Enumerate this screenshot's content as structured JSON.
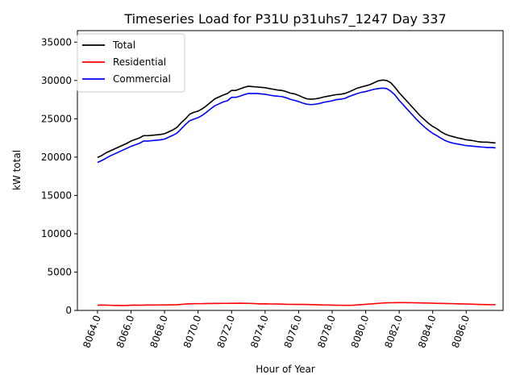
{
  "chart_data": {
    "type": "line",
    "title": "Timeseries Load for P31U p31uhs7_1247  Day 337",
    "xlabel": "Hour of Year",
    "ylabel": "kW total",
    "xlim": [
      8062.8,
      8088.2
    ],
    "ylim": [
      0,
      36500
    ],
    "x_ticks": [
      8064,
      8066,
      8068,
      8070,
      8072,
      8074,
      8076,
      8078,
      8080,
      8082,
      8084,
      8086
    ],
    "x_tick_labels": [
      "8064.0",
      "8066.0",
      "8068.0",
      "8070.0",
      "8072.0",
      "8074.0",
      "8076.0",
      "8078.0",
      "8080.0",
      "8082.0",
      "8084.0",
      "8086.0"
    ],
    "y_ticks": [
      0,
      5000,
      10000,
      15000,
      20000,
      25000,
      30000,
      35000
    ],
    "y_tick_labels": [
      "0",
      "5000",
      "10000",
      "15000",
      "20000",
      "25000",
      "30000",
      "35000"
    ],
    "legend_position": "top-left",
    "x": [
      8064.0,
      8064.25,
      8064.5,
      8064.75,
      8065.0,
      8065.25,
      8065.5,
      8065.75,
      8066.0,
      8066.25,
      8066.5,
      8066.75,
      8067.0,
      8067.25,
      8067.5,
      8067.75,
      8068.0,
      8068.25,
      8068.5,
      8068.75,
      8069.0,
      8069.25,
      8069.5,
      8069.75,
      8070.0,
      8070.25,
      8070.5,
      8070.75,
      8071.0,
      8071.25,
      8071.5,
      8071.75,
      8072.0,
      8072.25,
      8072.5,
      8072.75,
      8073.0,
      8073.25,
      8073.5,
      8073.75,
      8074.0,
      8074.25,
      8074.5,
      8074.75,
      8075.0,
      8075.25,
      8075.5,
      8075.75,
      8076.0,
      8076.25,
      8076.5,
      8076.75,
      8077.0,
      8077.25,
      8077.5,
      8077.75,
      8078.0,
      8078.25,
      8078.5,
      8078.75,
      8079.0,
      8079.25,
      8079.5,
      8079.75,
      8080.0,
      8080.25,
      8080.5,
      8080.75,
      8081.0,
      8081.25,
      8081.5,
      8081.75,
      8082.0,
      8082.25,
      8082.5,
      8082.75,
      8083.0,
      8083.25,
      8083.5,
      8083.75,
      8084.0,
      8084.25,
      8084.5,
      8084.75,
      8085.0,
      8085.25,
      8085.5,
      8085.75,
      8086.0,
      8086.25,
      8086.5,
      8086.75,
      8087.0,
      8087.25,
      8087.5,
      8087.75
    ],
    "series": [
      {
        "name": "Total",
        "color": "#000000",
        "values": [
          19950,
          20200,
          20550,
          20800,
          21050,
          21300,
          21550,
          21800,
          22100,
          22300,
          22500,
          22800,
          22800,
          22850,
          22900,
          22950,
          23050,
          23300,
          23550,
          23900,
          24500,
          25000,
          25600,
          25850,
          26000,
          26300,
          26700,
          27150,
          27600,
          27850,
          28100,
          28300,
          28700,
          28700,
          28900,
          29100,
          29250,
          29200,
          29150,
          29100,
          29050,
          28950,
          28850,
          28750,
          28700,
          28550,
          28350,
          28250,
          28050,
          27800,
          27600,
          27550,
          27600,
          27700,
          27850,
          27950,
          28050,
          28150,
          28200,
          28300,
          28500,
          28750,
          29000,
          29150,
          29300,
          29450,
          29700,
          29950,
          30050,
          30000,
          29700,
          29100,
          28400,
          27800,
          27200,
          26600,
          26000,
          25400,
          24900,
          24400,
          24000,
          23700,
          23300,
          23000,
          22800,
          22650,
          22500,
          22400,
          22250,
          22200,
          22100,
          22000,
          21950,
          21950,
          21900,
          21850
        ]
      },
      {
        "name": "Residential",
        "color": "#ff0000",
        "values": [
          680,
          690,
          690,
          670,
          650,
          650,
          640,
          650,
          680,
          690,
          680,
          690,
          700,
          710,
          700,
          710,
          720,
          720,
          730,
          740,
          780,
          830,
          860,
          870,
          880,
          880,
          900,
          900,
          910,
          910,
          920,
          920,
          930,
          930,
          940,
          930,
          920,
          900,
          870,
          850,
          860,
          840,
          840,
          830,
          820,
          800,
          790,
          780,
          790,
          780,
          770,
          760,
          740,
          720,
          710,
          700,
          690,
          680,
          670,
          660,
          660,
          680,
          720,
          760,
          800,
          840,
          870,
          920,
          960,
          990,
          1000,
          1010,
          1020,
          1020,
          1010,
          1000,
          990,
          980,
          970,
          960,
          940,
          920,
          910,
          900,
          890,
          880,
          860,
          850,
          840,
          820,
          800,
          780,
          770,
          760,
          750,
          740
        ]
      },
      {
        "name": "Commercial",
        "color": "#0000ff",
        "values": [
          19300,
          19550,
          19850,
          20150,
          20400,
          20650,
          20900,
          21150,
          21400,
          21600,
          21800,
          22100,
          22100,
          22150,
          22200,
          22250,
          22350,
          22600,
          22850,
          23150,
          23700,
          24250,
          24750,
          24950,
          25150,
          25450,
          25850,
          26300,
          26700,
          26950,
          27200,
          27350,
          27800,
          27800,
          27950,
          28150,
          28300,
          28300,
          28300,
          28250,
          28200,
          28100,
          28000,
          27950,
          27900,
          27750,
          27550,
          27400,
          27250,
          27050,
          26900,
          26850,
          26900,
          27000,
          27150,
          27250,
          27350,
          27500,
          27550,
          27650,
          27900,
          28100,
          28300,
          28450,
          28550,
          28700,
          28850,
          28950,
          29000,
          28950,
          28600,
          28100,
          27400,
          26800,
          26200,
          25600,
          25000,
          24450,
          23950,
          23500,
          23100,
          22800,
          22450,
          22150,
          21950,
          21800,
          21700,
          21600,
          21500,
          21450,
          21400,
          21350,
          21300,
          21250,
          21250,
          21200
        ]
      }
    ]
  }
}
